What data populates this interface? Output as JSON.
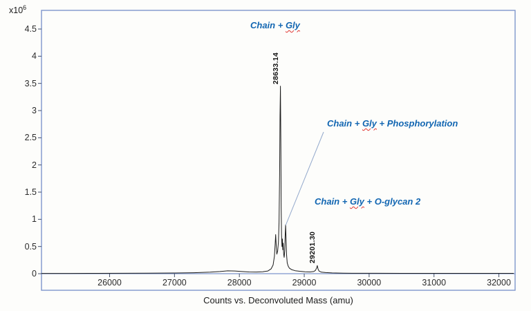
{
  "chart_data": {
    "type": "line",
    "xlabel": "Counts vs. Deconvoluted Mass (amu)",
    "ylabel": "",
    "y_scale": {
      "base": "x10",
      "exponent": "6"
    },
    "y_unit_multiplier": 1000000,
    "xlim": [
      24950,
      32250
    ],
    "ylim": [
      0,
      4.5
    ],
    "x_ticks": [
      26000,
      27000,
      28000,
      29000,
      30000,
      31000,
      32000
    ],
    "y_ticks": [
      0,
      0.5,
      1,
      1.5,
      2,
      2.5,
      3,
      3.5,
      4,
      4.5
    ],
    "grid": false,
    "legend": false,
    "line_color": "#1b1b1b",
    "frame_color": "#7e96cc",
    "tick_color": "#44506b",
    "annotation_color": "#1266b2",
    "squiggle_color": "#e0332e",
    "leader_line_color": "#93a9cc",
    "series": [
      {
        "name": "deconvoluted-mass-spectrum",
        "units": "counts (x10^6)",
        "points": [
          [
            24950,
            0.005
          ],
          [
            25400,
            0.005
          ],
          [
            25800,
            0.006
          ],
          [
            26200,
            0.008
          ],
          [
            26600,
            0.01
          ],
          [
            27000,
            0.013
          ],
          [
            27300,
            0.018
          ],
          [
            27550,
            0.028
          ],
          [
            27700,
            0.04
          ],
          [
            27820,
            0.052
          ],
          [
            27930,
            0.05
          ],
          [
            28040,
            0.04
          ],
          [
            28150,
            0.032
          ],
          [
            28260,
            0.03
          ],
          [
            28360,
            0.036
          ],
          [
            28440,
            0.05
          ],
          [
            28490,
            0.09
          ],
          [
            28520,
            0.16
          ],
          [
            28540,
            0.32
          ],
          [
            28552,
            0.55
          ],
          [
            28560,
            0.72
          ],
          [
            28568,
            0.52
          ],
          [
            28578,
            0.36
          ],
          [
            28590,
            0.42
          ],
          [
            28602,
            0.58
          ],
          [
            28612,
            0.95
          ],
          [
            28620,
            1.8
          ],
          [
            28627,
            2.9
          ],
          [
            28633,
            3.45
          ],
          [
            28639,
            2.4
          ],
          [
            28645,
            1.2
          ],
          [
            28650,
            0.72
          ],
          [
            28656,
            0.5
          ],
          [
            28663,
            0.64
          ],
          [
            28669,
            0.44
          ],
          [
            28676,
            0.56
          ],
          [
            28683,
            0.36
          ],
          [
            28691,
            0.3
          ],
          [
            28699,
            0.42
          ],
          [
            28706,
            0.68
          ],
          [
            28713,
            0.9
          ],
          [
            28719,
            0.66
          ],
          [
            28727,
            0.36
          ],
          [
            28737,
            0.2
          ],
          [
            28752,
            0.14
          ],
          [
            28772,
            0.1
          ],
          [
            28805,
            0.075
          ],
          [
            28860,
            0.055
          ],
          [
            28930,
            0.045
          ],
          [
            29010,
            0.035
          ],
          [
            29090,
            0.032
          ],
          [
            29145,
            0.04
          ],
          [
            29172,
            0.06
          ],
          [
            29192,
            0.11
          ],
          [
            29201,
            0.15
          ],
          [
            29212,
            0.09
          ],
          [
            29228,
            0.048
          ],
          [
            29265,
            0.028
          ],
          [
            29330,
            0.02
          ],
          [
            29430,
            0.014
          ],
          [
            29600,
            0.01
          ],
          [
            29820,
            0.008
          ],
          [
            30100,
            0.007
          ],
          [
            30500,
            0.006
          ],
          [
            31000,
            0.006
          ],
          [
            31500,
            0.006
          ],
          [
            32000,
            0.006
          ],
          [
            32230,
            0.006
          ]
        ]
      }
    ],
    "peak_labels": [
      {
        "label": "28633.14",
        "mass": 28633.14,
        "height": 3.45
      },
      {
        "label": "29201.30",
        "mass": 29201.3,
        "height": 0.15
      }
    ],
    "annotations": [
      {
        "name": "chain-gly",
        "parts": [
          {
            "text": "Chain + ",
            "wavy": false
          },
          {
            "text": "Gly",
            "wavy": true
          }
        ]
      },
      {
        "name": "chain-gly-phosphorylation",
        "parts": [
          {
            "text": "Chain + ",
            "wavy": false
          },
          {
            "text": "Gly",
            "wavy": true
          },
          {
            "text": " + Phosphorylation",
            "wavy": false
          }
        ],
        "anchor_mass": 28713,
        "anchor_height": 0.9,
        "leader_line": true
      },
      {
        "name": "chain-gly-o-glycan-2",
        "parts": [
          {
            "text": "Chain + ",
            "wavy": false
          },
          {
            "text": "Gly",
            "wavy": true
          },
          {
            "text": " + O-glycan 2",
            "wavy": false
          }
        ]
      }
    ]
  }
}
